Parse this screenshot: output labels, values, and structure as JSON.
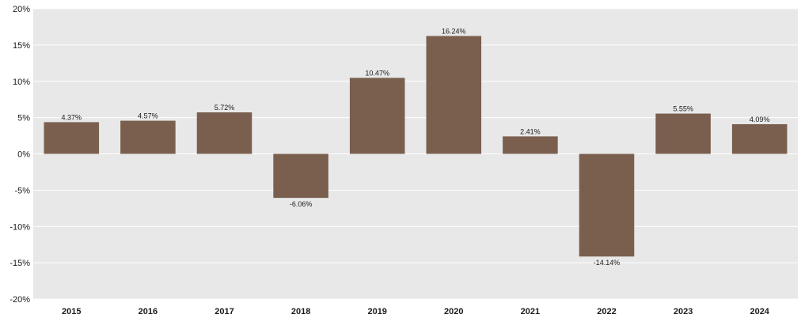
{
  "chart_data": {
    "type": "bar",
    "title": "",
    "xlabel": "",
    "ylabel": "",
    "categories": [
      "2015",
      "2016",
      "2017",
      "2018",
      "2019",
      "2020",
      "2021",
      "2022",
      "2023",
      "2024"
    ],
    "values": [
      4.37,
      4.57,
      5.72,
      -6.06,
      10.47,
      16.24,
      2.41,
      -14.14,
      5.55,
      4.09
    ],
    "data_labels": [
      "4.37%",
      "4.57%",
      "5.72%",
      "-6.06%",
      "10.47%",
      "16.24%",
      "2.41%",
      "-14.14%",
      "5.55%",
      "4.09%"
    ],
    "ylim": [
      -20,
      20
    ],
    "y_ticks": [
      20,
      15,
      10,
      5,
      0,
      -5,
      -10,
      -15,
      -20
    ],
    "y_tick_labels": [
      "20%",
      "15%",
      "10%",
      "5%",
      "0%",
      "-5%",
      "-10%",
      "-15%",
      "-20%"
    ],
    "grid": true,
    "legend": "none",
    "colors": {
      "bar": "#7a5f4f",
      "plot_background": "#e8e8e8",
      "gridline": "#ffffff"
    }
  }
}
